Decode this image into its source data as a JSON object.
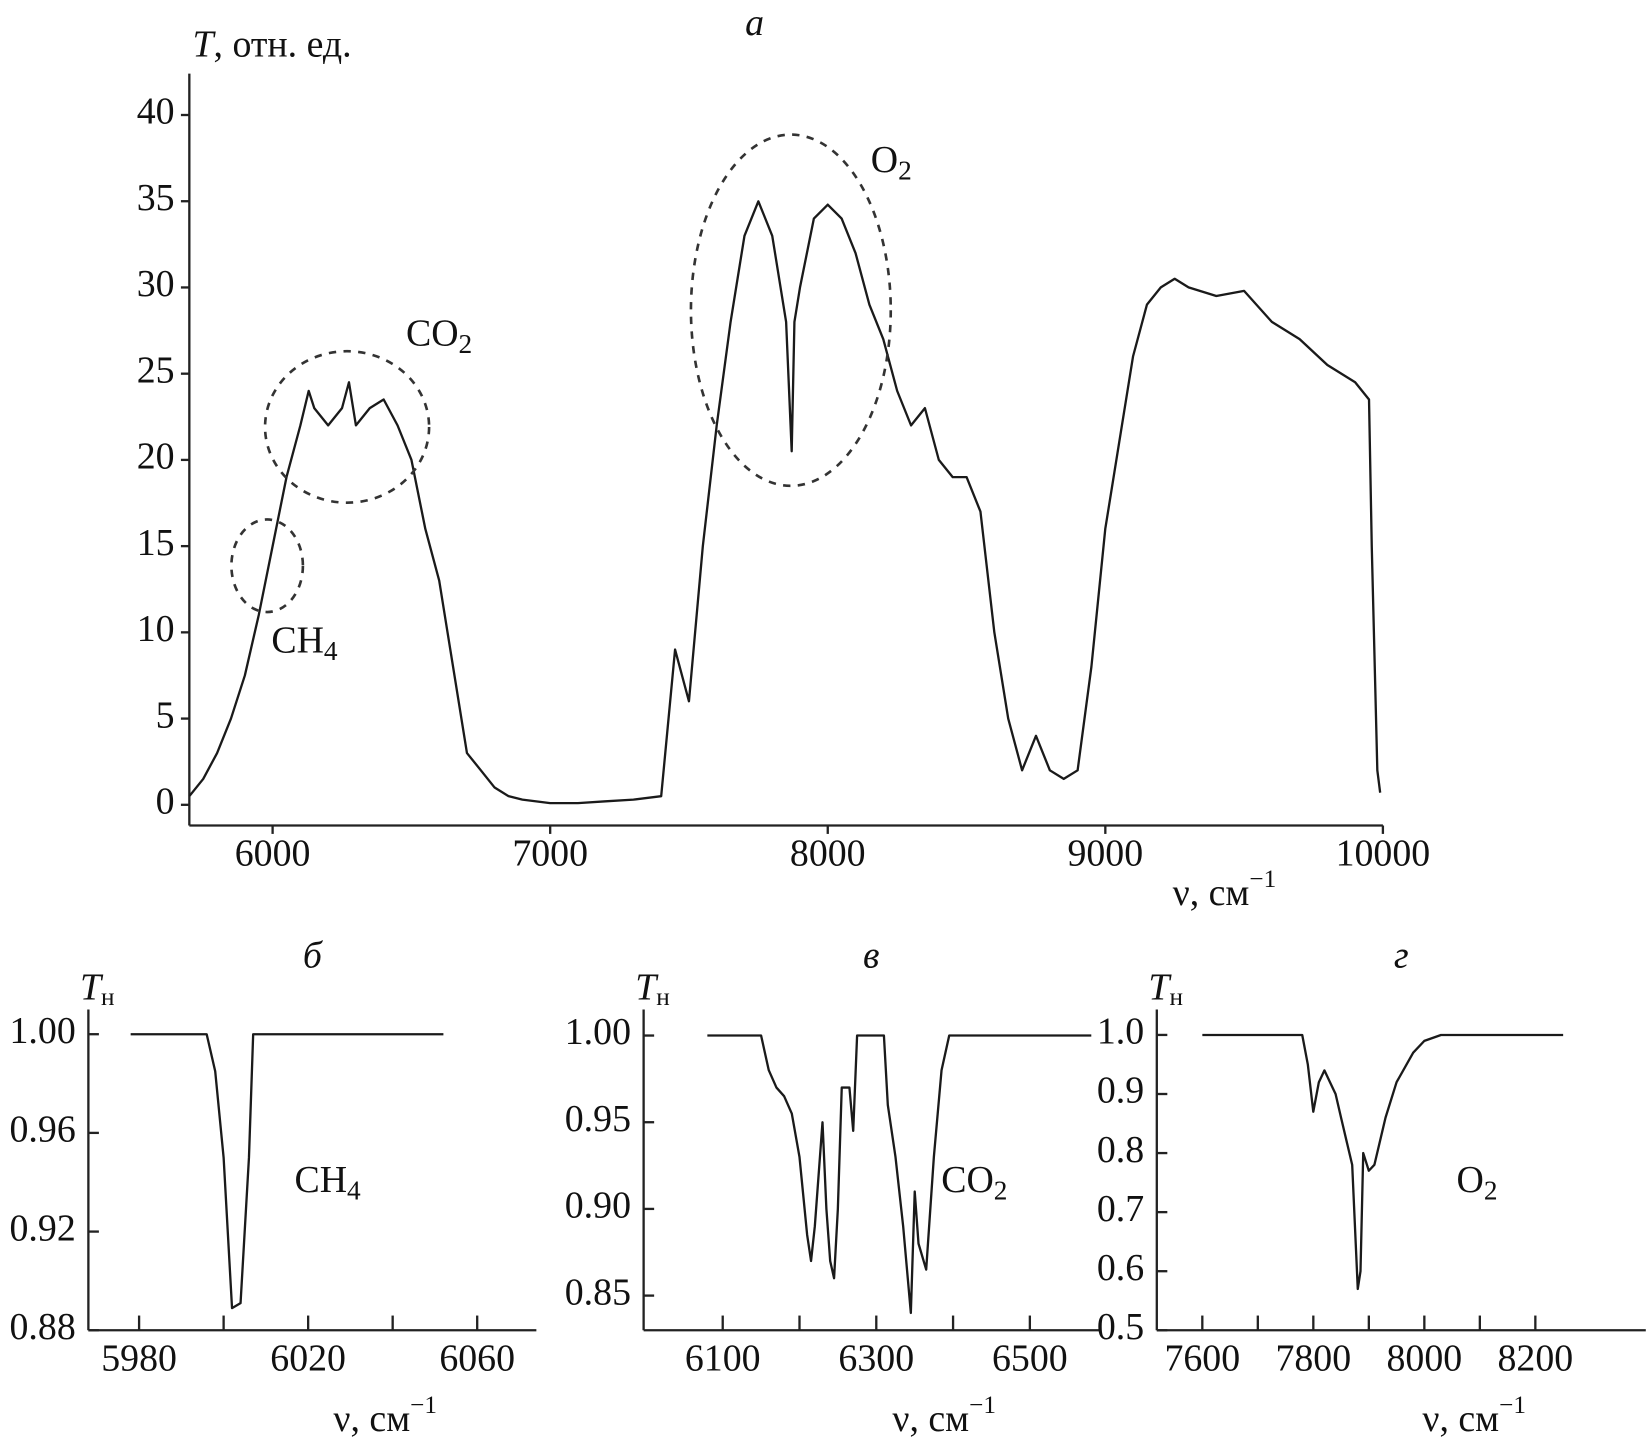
{
  "chart_data": [
    {
      "type": "line",
      "title": "а",
      "y_label": {
        "symbol": "T",
        "unit": ", отн. ед."
      },
      "x_label": {
        "text": "ν, см",
        "sup": "−1"
      },
      "xlim": [
        5700,
        10000
      ],
      "ylim": [
        -1.2,
        42.4
      ],
      "xticks": [
        6000,
        7000,
        8000,
        9000,
        10000
      ],
      "yticks": [
        0,
        5,
        10,
        15,
        20,
        25,
        30,
        35,
        40
      ],
      "annotations": [
        {
          "text": "CH",
          "sub": "4"
        },
        {
          "text": "CO",
          "sub": "2"
        },
        {
          "text": "O",
          "sub": "2"
        }
      ],
      "x": [
        5700,
        5750,
        5800,
        5850,
        5900,
        5950,
        6000,
        6050,
        6100,
        6130,
        6150,
        6200,
        6250,
        6275,
        6300,
        6350,
        6400,
        6450,
        6500,
        6550,
        6600,
        6650,
        6700,
        6750,
        6800,
        6850,
        6900,
        7000,
        7100,
        7200,
        7300,
        7400,
        7450,
        7500,
        7550,
        7600,
        7650,
        7700,
        7750,
        7800,
        7850,
        7870,
        7880,
        7900,
        7950,
        8000,
        8050,
        8100,
        8150,
        8200,
        8250,
        8300,
        8350,
        8400,
        8450,
        8500,
        8550,
        8600,
        8650,
        8700,
        8750,
        8800,
        8850,
        8900,
        8950,
        9000,
        9050,
        9100,
        9150,
        9200,
        9250,
        9300,
        9400,
        9500,
        9600,
        9700,
        9800,
        9900,
        9950,
        9960,
        9980,
        9990
      ],
      "series": [
        {
          "color": "#1a1a1a",
          "values": [
            0.5,
            1.5,
            3,
            5,
            7.5,
            11,
            15,
            19,
            22,
            24,
            23,
            22,
            23,
            24.5,
            22,
            23,
            23.5,
            22,
            20,
            16,
            13,
            8,
            3,
            2,
            1,
            0.5,
            0.3,
            0.1,
            0.1,
            0.2,
            0.3,
            0.5,
            9,
            6,
            15,
            22,
            28,
            33,
            35,
            33,
            28,
            20.5,
            28,
            30,
            34,
            34.8,
            34,
            32,
            29,
            27,
            24,
            22,
            23,
            20,
            19,
            19,
            17,
            10,
            5,
            2,
            4,
            2,
            1.5,
            2,
            8,
            16,
            21,
            26,
            29,
            30,
            30.5,
            30,
            29.5,
            29.8,
            28,
            27,
            25.5,
            24.5,
            23.5,
            15,
            2,
            0.7
          ]
        }
      ]
    },
    {
      "type": "line",
      "title": "б",
      "y_label": {
        "symbol": "T",
        "sub": "н"
      },
      "x_label": {
        "text": "ν, см",
        "sup": "−1"
      },
      "xlim": [
        5968,
        6074
      ],
      "ylim": [
        0.88,
        1.01
      ],
      "xticks": [
        5980,
        6020,
        6060
      ],
      "xminor": [
        6000,
        6040
      ],
      "yticks": [
        {
          "value": 1.0,
          "label": "1.00"
        },
        0.96,
        0.92,
        0.88
      ],
      "annotations": [
        {
          "text": "CH",
          "sub": "4"
        }
      ],
      "x": [
        5978,
        5996,
        5998,
        6000,
        6002,
        6004,
        6006,
        6007,
        6052
      ],
      "series": [
        {
          "color": "#1a1a1a",
          "values": [
            1.0,
            1.0,
            0.985,
            0.95,
            0.889,
            0.891,
            0.95,
            1.0,
            1.0
          ]
        }
      ]
    },
    {
      "type": "line",
      "title": "в",
      "y_label": {
        "symbol": "T",
        "sub": "н"
      },
      "x_label": {
        "text": "ν, см",
        "sup": "−1"
      },
      "xlim": [
        5997,
        6590
      ],
      "ylim": [
        0.83,
        1.015
      ],
      "xticks": [
        6100,
        6300,
        6500
      ],
      "xminor": [
        6200,
        6400
      ],
      "yticks": [
        {
          "value": 1.0,
          "label": "1.00"
        },
        0.95,
        {
          "value": 0.9,
          "label": "0.90"
        },
        0.85
      ],
      "annotations": [
        {
          "text": "CO",
          "sub": "2"
        }
      ],
      "x": [
        6080,
        6150,
        6160,
        6170,
        6180,
        6190,
        6200,
        6210,
        6215,
        6220,
        6230,
        6235,
        6240,
        6245,
        6250,
        6255,
        6265,
        6270,
        6275,
        6310,
        6315,
        6325,
        6335,
        6345,
        6350,
        6355,
        6365,
        6375,
        6385,
        6395,
        6580
      ],
      "series": [
        {
          "color": "#1a1a1a",
          "values": [
            1,
            1,
            0.98,
            0.97,
            0.965,
            0.955,
            0.93,
            0.885,
            0.87,
            0.89,
            0.95,
            0.9,
            0.87,
            0.86,
            0.9,
            0.97,
            0.97,
            0.945,
            1,
            1,
            0.96,
            0.93,
            0.89,
            0.84,
            0.91,
            0.88,
            0.865,
            0.93,
            0.98,
            1,
            1
          ]
        }
      ]
    },
    {
      "type": "line",
      "title": "г",
      "y_label": {
        "symbol": "T",
        "sub": "н"
      },
      "x_label": {
        "text": "ν, см",
        "sup": "−1"
      },
      "xlim": [
        7518,
        8399
      ],
      "ylim": [
        0.5,
        1.043
      ],
      "xticks": [
        7600,
        7800,
        8000,
        8200
      ],
      "xminor": [
        7700,
        7900,
        8100
      ],
      "yticks": [
        {
          "value": 1.0,
          "label": "1.0"
        },
        0.9,
        0.8,
        0.7,
        0.6,
        0.5
      ],
      "annotations": [
        {
          "text": "O",
          "sub": "2"
        }
      ],
      "x": [
        7600,
        7780,
        7790,
        7800,
        7810,
        7820,
        7830,
        7840,
        7850,
        7860,
        7870,
        7880,
        7885,
        7890,
        7900,
        7910,
        7930,
        7950,
        7980,
        8000,
        8030,
        8250
      ],
      "series": [
        {
          "color": "#1a1a1a",
          "values": [
            1,
            1,
            0.95,
            0.87,
            0.92,
            0.94,
            0.92,
            0.9,
            0.86,
            0.82,
            0.78,
            0.57,
            0.6,
            0.8,
            0.77,
            0.78,
            0.86,
            0.92,
            0.97,
            0.99,
            1,
            1
          ]
        }
      ]
    }
  ]
}
